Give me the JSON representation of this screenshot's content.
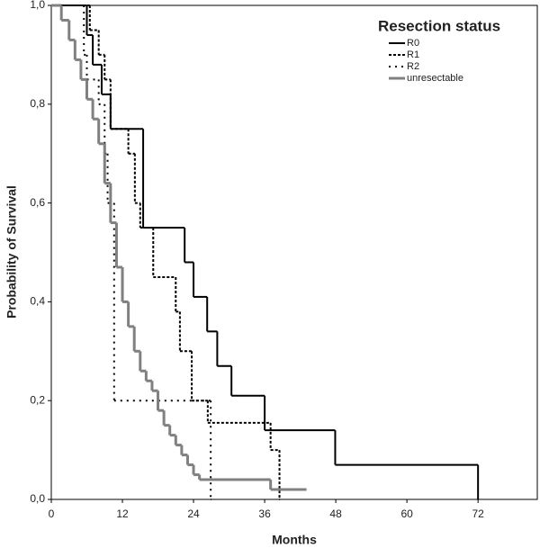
{
  "chart_data": {
    "type": "step",
    "xlabel": "Months",
    "ylabel": "Probability of Survival",
    "legend_title": "Resection status",
    "legend": "upper right",
    "xlim": [
      0,
      82
    ],
    "ylim": [
      0,
      1
    ],
    "xticks": [
      0,
      12,
      24,
      36,
      48,
      60,
      72
    ],
    "yticks": [
      {
        "value": 0,
        "label": "0,0"
      },
      {
        "value": 0.2,
        "label": "0,2"
      },
      {
        "value": 0.4,
        "label": "0,4"
      },
      {
        "value": 0.6,
        "label": "0,6"
      },
      {
        "value": 0.8,
        "label": "0,8"
      },
      {
        "value": 1,
        "label": "1,0"
      }
    ],
    "series": [
      {
        "name": "R0",
        "color": "#000000",
        "dash": "none",
        "width": 2,
        "x": [
          0,
          6,
          7,
          8.5,
          10,
          15.5,
          22.5,
          24,
          26.3,
          28,
          30.4,
          36,
          47.9,
          72
        ],
        "values": [
          1,
          0.94,
          0.88,
          0.82,
          0.75,
          0.55,
          0.48,
          0.41,
          0.34,
          0.27,
          0.21,
          0.14,
          0.07,
          0
        ]
      },
      {
        "name": "R1",
        "color": "#000000",
        "dash": "3,2",
        "width": 2,
        "x": [
          0,
          6.5,
          8,
          9,
          10,
          13,
          14.1,
          15,
          17.2,
          21,
          21.7,
          23.7,
          26.4,
          37,
          38.5
        ],
        "values": [
          1,
          0.95,
          0.9,
          0.85,
          0.75,
          0.7,
          0.6,
          0.55,
          0.45,
          0.38,
          0.3,
          0.2,
          0.155,
          0.1,
          0
        ]
      },
      {
        "name": "R2",
        "color": "#000000",
        "dash": "2,5",
        "width": 2,
        "x": [
          0,
          5.5,
          6,
          8,
          9,
          9.5,
          10.6,
          26.9
        ],
        "values": [
          1,
          0.9,
          0.85,
          0.8,
          0.7,
          0.6,
          0.2,
          0
        ]
      },
      {
        "name": "unresectable",
        "color": "#808080",
        "dash": "none",
        "width": 3,
        "x": [
          0,
          1.7,
          3,
          4,
          5,
          6,
          7,
          8,
          9,
          10,
          11,
          12,
          13,
          14,
          15,
          16,
          17,
          18,
          19,
          20,
          21,
          22,
          23,
          24,
          25,
          37,
          43
        ],
        "values": [
          1,
          0.97,
          0.93,
          0.89,
          0.85,
          0.81,
          0.77,
          0.72,
          0.64,
          0.56,
          0.47,
          0.4,
          0.35,
          0.3,
          0.26,
          0.24,
          0.22,
          0.18,
          0.15,
          0.13,
          0.11,
          0.09,
          0.07,
          0.05,
          0.04,
          0.02,
          0.02
        ]
      }
    ]
  }
}
